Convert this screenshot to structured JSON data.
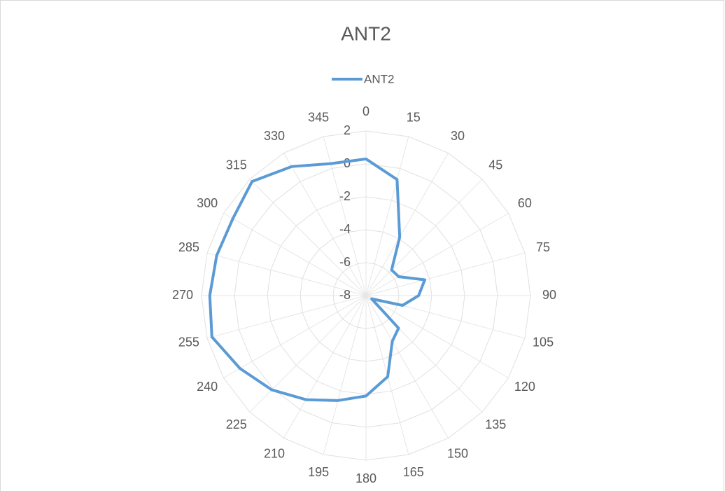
{
  "chart_data": {
    "type": "radar",
    "title": "ANT2",
    "categories": [
      "0",
      "15",
      "30",
      "45",
      "60",
      "75",
      "90",
      "105",
      "120",
      "135",
      "150",
      "165",
      "180",
      "195",
      "210",
      "225",
      "240",
      "255",
      "270",
      "285",
      "300",
      "315",
      "330",
      "345"
    ],
    "series": [
      {
        "name": "ANT2",
        "color": "#5b9bd5",
        "values": [
          0.3,
          -0.7,
          -3.9,
          -5.8,
          -5.7,
          -4.3,
          -4.8,
          -5.7,
          -7.6,
          -5.2,
          -4.8,
          -2.9,
          -1.9,
          -1.4,
          -0.7,
          0.1,
          0.85,
          1.7,
          1.5,
          1.4,
          1.35,
          1.8,
          1.05,
          0.3
        ]
      }
    ],
    "ylim": [
      -8,
      2
    ],
    "yticks": [
      -8,
      -6,
      -4,
      -2,
      0,
      2
    ],
    "grid": true,
    "legend": "top"
  }
}
